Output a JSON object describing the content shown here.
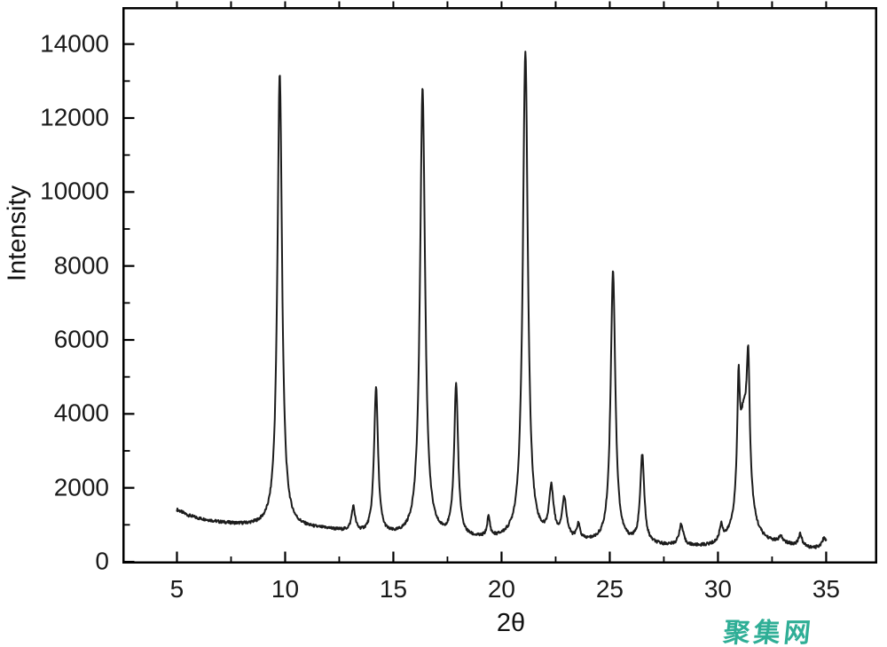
{
  "watermark": {
    "text": "聚集网",
    "color": "#2fae96"
  },
  "chart_data": {
    "type": "line",
    "title": "",
    "xlabel": "2θ",
    "ylabel": "Intensity",
    "xlim": [
      2.48,
      37.36
    ],
    "ylim": [
      0,
      15000
    ],
    "x_data_range": [
      5,
      35
    ],
    "grid": false,
    "legend": "none",
    "line_color": "#1c1c1c",
    "x_tick_values": [
      5,
      10,
      15,
      20,
      25,
      30,
      35
    ],
    "x_tick_labels": [
      "5",
      "10",
      "15",
      "20",
      "25",
      "30",
      "35"
    ],
    "x_minor_ticks": [
      7.5,
      12.5,
      17.5,
      22.5,
      27.5,
      32.5
    ],
    "top_ticks": [
      5,
      7.5,
      10,
      12.5,
      15,
      17.5,
      20,
      22.5,
      25,
      27.5,
      30,
      32.5,
      35
    ],
    "y_tick_values": [
      0,
      2000,
      4000,
      6000,
      8000,
      10000,
      12000,
      14000
    ],
    "y_tick_labels": [
      "0",
      "2000",
      "4000",
      "6000",
      "8000",
      "10000",
      "12000",
      "14000"
    ],
    "y_minor_ticks": [
      1000,
      3000,
      5000,
      7000,
      9000,
      11000,
      13000
    ],
    "peaks": [
      {
        "two_theta": 9.75,
        "intensity": 13200,
        "amp": 12290,
        "hwhm": 0.13
      },
      {
        "two_theta": 13.15,
        "intensity": 1400,
        "amp": 660,
        "hwhm": 0.1
      },
      {
        "two_theta": 14.2,
        "intensity": 4650,
        "amp": 3980,
        "hwhm": 0.11
      },
      {
        "two_theta": 16.35,
        "intensity": 12800,
        "amp": 12180,
        "hwhm": 0.14
      },
      {
        "two_theta": 17.9,
        "intensity": 4780,
        "amp": 4100,
        "hwhm": 0.11
      },
      {
        "two_theta": 19.4,
        "intensity": 1090,
        "amp": 530,
        "hwhm": 0.08
      },
      {
        "two_theta": 21.1,
        "intensity": 13750,
        "amp": 13210,
        "hwhm": 0.14
      },
      {
        "two_theta": 22.3,
        "intensity": 1850,
        "amp": 1330,
        "hwhm": 0.13
      },
      {
        "two_theta": 22.9,
        "intensity": 1580,
        "amp": 1070,
        "hwhm": 0.13
      },
      {
        "two_theta": 23.55,
        "intensity": 900,
        "amp": 400,
        "hwhm": 0.09
      },
      {
        "two_theta": 25.15,
        "intensity": 7850,
        "amp": 7380,
        "hwhm": 0.13
      },
      {
        "two_theta": 26.5,
        "intensity": 2840,
        "amp": 2380,
        "hwhm": 0.11
      },
      {
        "two_theta": 28.3,
        "intensity": 950,
        "amp": 560,
        "hwhm": 0.12
      },
      {
        "two_theta": 30.15,
        "intensity": 800,
        "amp": 430,
        "hwhm": 0.09
      },
      {
        "two_theta": 30.95,
        "intensity": 5300,
        "amp": 2900,
        "hwhm": 0.07
      },
      {
        "two_theta": 31.2,
        "intensity": 4400,
        "amp": 3400,
        "hwhm": 0.28
      },
      {
        "two_theta": 31.4,
        "intensity": 5800,
        "amp": 3100,
        "hwhm": 0.08
      },
      {
        "two_theta": 32.9,
        "intensity": 580,
        "amp": 160,
        "hwhm": 0.12
      },
      {
        "two_theta": 33.8,
        "intensity": 720,
        "amp": 320,
        "hwhm": 0.1
      },
      {
        "two_theta": 34.9,
        "intensity": 560,
        "amp": 200,
        "hwhm": 0.12
      }
    ],
    "baseline_points": [
      [
        5,
        1400
      ],
      [
        5.5,
        1250
      ],
      [
        6,
        1160
      ],
      [
        7,
        1050
      ],
      [
        8,
        980
      ],
      [
        9,
        930
      ],
      [
        10,
        895
      ],
      [
        11,
        880
      ],
      [
        12,
        850
      ],
      [
        13,
        770
      ],
      [
        13.6,
        715
      ],
      [
        14.5,
        665
      ],
      [
        15.5,
        635
      ],
      [
        16.5,
        615
      ],
      [
        17.5,
        595
      ],
      [
        18.5,
        575
      ],
      [
        19.5,
        558
      ],
      [
        20.5,
        545
      ],
      [
        21.5,
        535
      ],
      [
        22.5,
        515
      ],
      [
        23.5,
        498
      ],
      [
        24.5,
        478
      ],
      [
        25.5,
        465
      ],
      [
        26.5,
        450
      ],
      [
        27.2,
        415
      ],
      [
        28,
        395
      ],
      [
        29,
        365
      ],
      [
        29.8,
        350
      ],
      [
        30.5,
        370
      ],
      [
        31.5,
        400
      ],
      [
        32.5,
        425
      ],
      [
        33.2,
        420
      ],
      [
        34,
        370
      ],
      [
        34.4,
        330
      ],
      [
        34.8,
        380
      ],
      [
        35,
        450
      ]
    ],
    "noise_amplitude": 80
  }
}
